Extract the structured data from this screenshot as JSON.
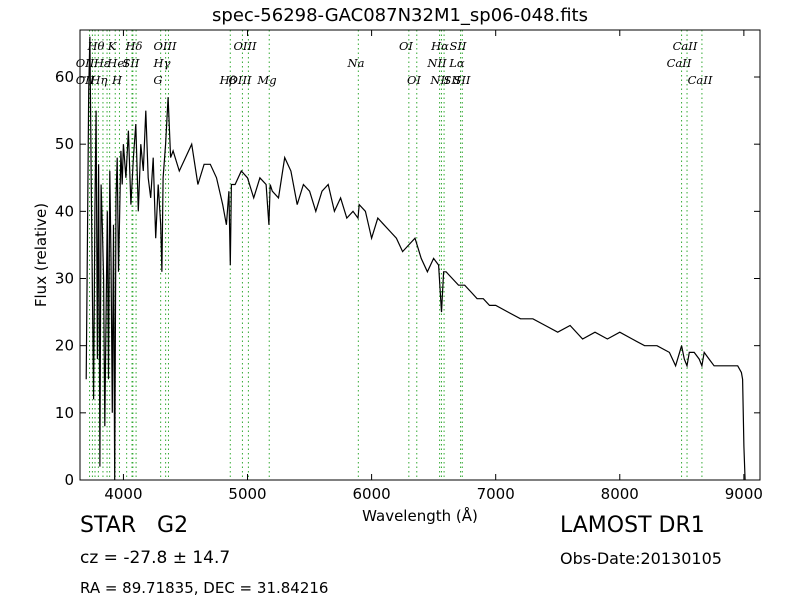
{
  "title": "spec-56298-GAC087N32M1_sp06-048.fits",
  "footer": {
    "class_label": "STAR",
    "subclass": "G2",
    "survey": "LAMOST DR1",
    "redshift": "cz = -27.8 ± 14.7",
    "obs_date": "Obs-Date:20130105",
    "coords": "RA = 89.71835, DEC = 31.84216"
  },
  "colors": {
    "spectrum": "#000000",
    "line_markers": "#33aa33",
    "axes": "#000000"
  },
  "chart_data": {
    "type": "line",
    "title": "spec-56298-GAC087N32M1_sp06-048.fits",
    "xlabel": "Wavelength (Å)",
    "ylabel": "Flux (relative)",
    "xlim": [
      3650,
      9130
    ],
    "ylim": [
      0,
      67
    ],
    "xticks": [
      4000,
      5000,
      6000,
      7000,
      8000,
      9000
    ],
    "yticks": [
      0,
      10,
      20,
      30,
      40,
      50,
      60
    ],
    "grid": false,
    "series": [
      {
        "x": [
          3700,
          3710,
          3720,
          3730,
          3740,
          3750,
          3760,
          3770,
          3780,
          3790,
          3800,
          3810,
          3820,
          3830,
          3840,
          3850,
          3860,
          3870,
          3880,
          3890,
          3900,
          3910,
          3920,
          3930,
          3940,
          3950,
          3960,
          3970,
          3980,
          3990,
          4000,
          4020,
          4040,
          4060,
          4080,
          4100,
          4120,
          4140,
          4160,
          4180,
          4200,
          4220,
          4240,
          4260,
          4280,
          4300,
          4310,
          4320,
          4340,
          4360,
          4380,
          4400,
          4450,
          4500,
          4550,
          4600,
          4650,
          4700,
          4750,
          4800,
          4830,
          4850,
          4861,
          4870,
          4900,
          4950,
          5000,
          5050,
          5100,
          5150,
          5172,
          5183,
          5200,
          5250,
          5300,
          5350,
          5400,
          5450,
          5500,
          5550,
          5600,
          5650,
          5700,
          5750,
          5800,
          5850,
          5890,
          5900,
          5950,
          6000,
          6050,
          6100,
          6150,
          6200,
          6250,
          6300,
          6350,
          6400,
          6450,
          6500,
          6540,
          6563,
          6580,
          6600,
          6650,
          6700,
          6750,
          6800,
          6850,
          6900,
          6950,
          7000,
          7100,
          7200,
          7300,
          7400,
          7500,
          7600,
          7700,
          7800,
          7900,
          8000,
          8100,
          8200,
          8300,
          8400,
          8450,
          8498,
          8520,
          8542,
          8560,
          8600,
          8640,
          8662,
          8680,
          8720,
          8760,
          8800,
          8850,
          8900,
          8950,
          8980,
          8990,
          9000,
          9010
        ],
        "y": [
          15,
          35,
          58,
          66,
          45,
          28,
          12,
          40,
          55,
          18,
          47,
          2,
          44,
          38,
          30,
          8,
          25,
          40,
          15,
          46,
          33,
          10,
          38,
          0,
          42,
          48,
          31,
          40,
          49,
          44,
          50,
          45,
          52,
          41,
          48,
          53,
          40,
          50,
          46,
          55,
          45,
          42,
          48,
          36,
          44,
          38,
          31,
          45,
          50,
          57,
          48,
          49,
          46,
          48,
          50,
          44,
          47,
          47,
          45,
          41,
          38,
          43,
          32,
          44,
          44,
          46,
          45,
          42,
          45,
          44,
          38,
          44,
          43,
          42,
          48,
          46,
          41,
          44,
          43,
          40,
          43,
          44,
          40,
          42,
          39,
          40,
          39,
          41,
          40,
          36,
          39,
          38,
          37,
          36,
          34,
          35,
          36,
          33,
          31,
          33,
          32,
          25,
          31,
          31,
          30,
          29,
          29,
          28,
          27,
          27,
          26,
          26,
          25,
          24,
          24,
          23,
          22,
          23,
          21,
          22,
          21,
          22,
          21,
          20,
          20,
          19,
          17,
          20,
          18,
          17,
          19,
          19,
          18,
          17,
          19,
          18,
          17,
          17,
          17,
          17,
          17,
          16,
          15,
          5,
          0
        ]
      }
    ],
    "annotations": {
      "top_row": [
        "Hθ",
        "K",
        "Hδ",
        "OIII",
        "OIII",
        "OI",
        "Hα",
        "SII",
        "CaII"
      ],
      "second_row": [
        "OII",
        "Hε",
        "HeI",
        "SII",
        "Hγ",
        "Na",
        "NII",
        "Lα",
        "CaII"
      ],
      "third_row": [
        "OII",
        "Hη",
        "H",
        "G",
        "Hβ",
        "OIII",
        "Mg",
        "OI",
        "NII",
        "SII",
        "SII",
        "CaII"
      ]
    }
  }
}
